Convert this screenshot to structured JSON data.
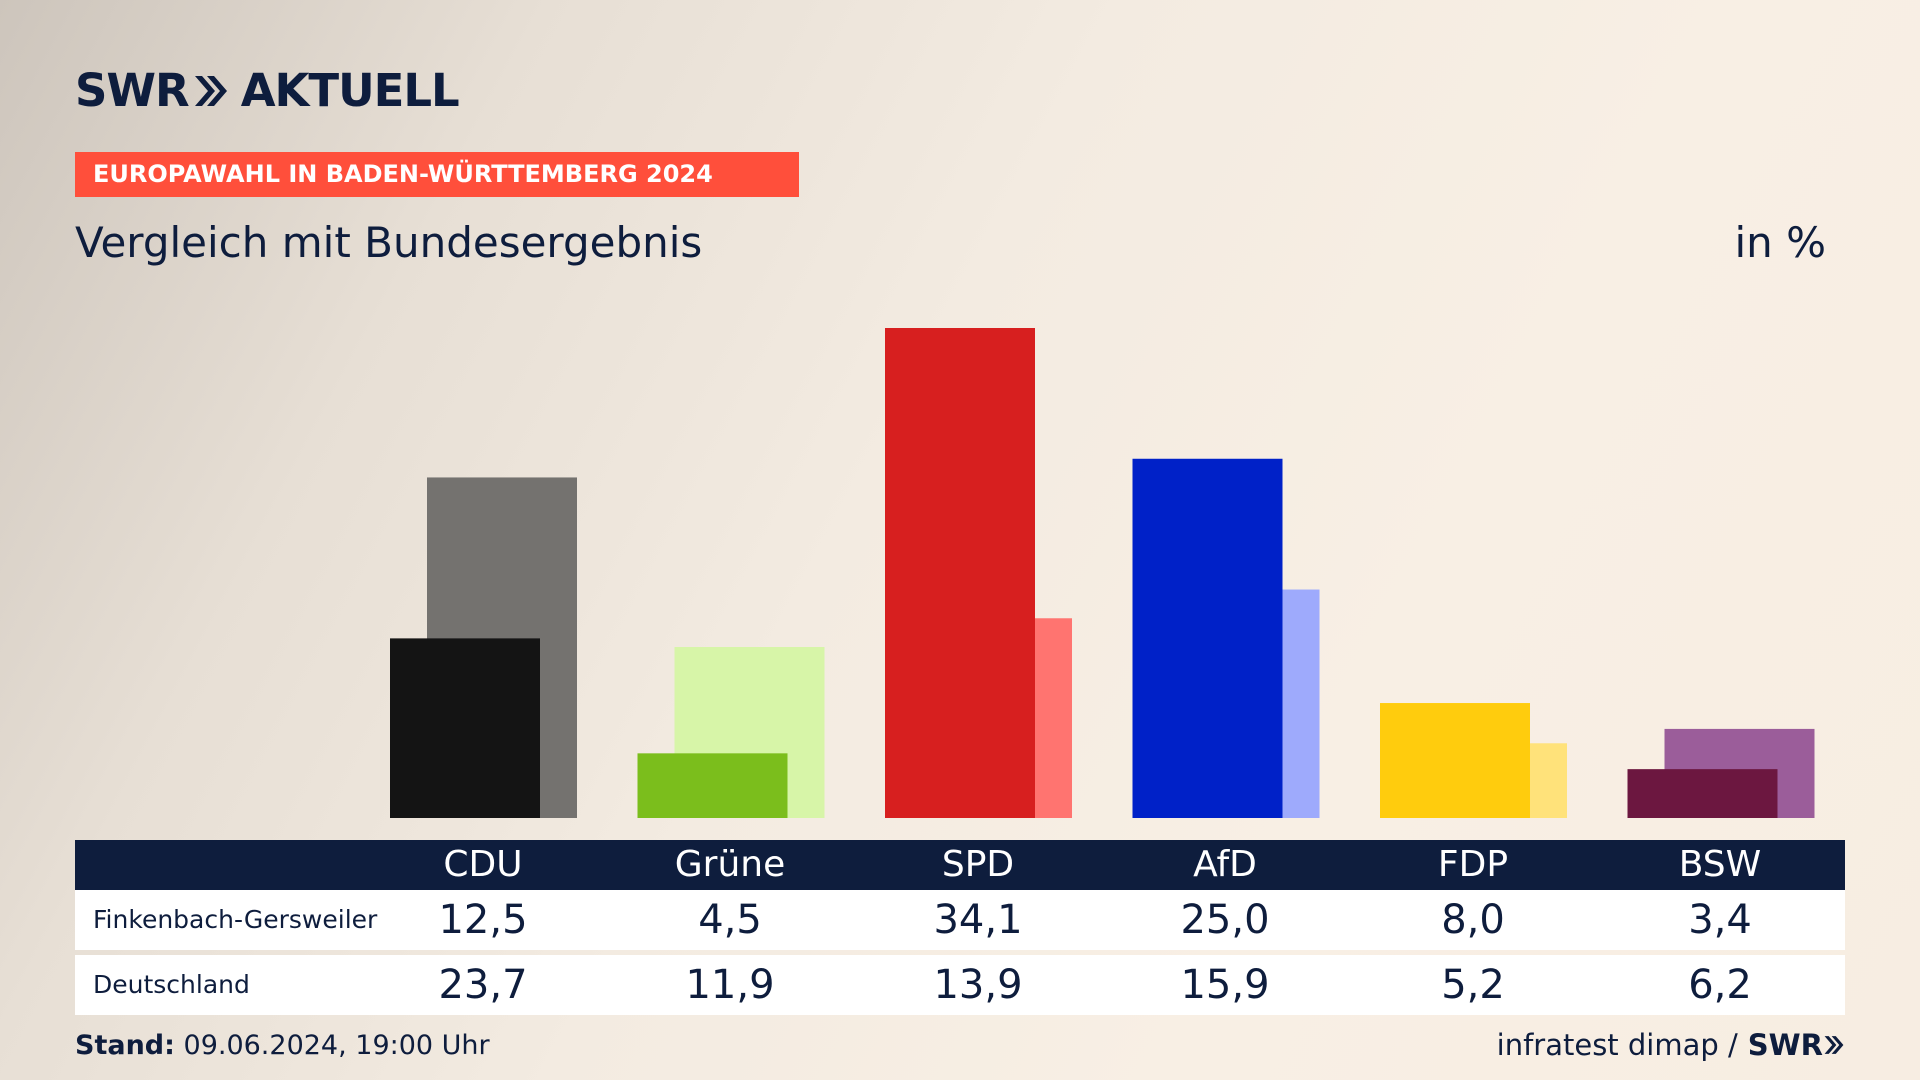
{
  "brand": {
    "logo_left": "SWR",
    "logo_right": "AKTUELL"
  },
  "banner": "EUROPAWAHL IN BADEN-WÜRTTEMBERG 2024",
  "subtitle": "Vergleich mit Bundesergebnis",
  "unit": "in %",
  "footer": {
    "stand_label": "Stand:",
    "stand_value": "09.06.2024, 19:00 Uhr",
    "source": "infratest dimap /",
    "source_brand": "SWR"
  },
  "table": {
    "columns": [
      "CDU",
      "Grüne",
      "SPD",
      "AfD",
      "FDP",
      "BSW"
    ],
    "rows": [
      {
        "label": "Finkenbach-Gersweiler",
        "values": [
          "12,5",
          "4,5",
          "34,1",
          "25,0",
          "8,0",
          "3,4"
        ]
      },
      {
        "label": "Deutschland",
        "values": [
          "23,7",
          "11,9",
          "13,9",
          "15,9",
          "5,2",
          "6,2"
        ]
      }
    ]
  },
  "chart_data": {
    "type": "bar",
    "categories": [
      "CDU",
      "Grüne",
      "SPD",
      "AfD",
      "FDP",
      "BSW"
    ],
    "series": [
      {
        "name": "Finkenbach-Gersweiler",
        "values": [
          12.5,
          4.5,
          34.1,
          25.0,
          8.0,
          3.4
        ],
        "colors": [
          "#141414",
          "#7bbe1c",
          "#d71f1f",
          "#0021c8",
          "#ffcc0d",
          "#6c1740"
        ]
      },
      {
        "name": "Deutschland",
        "values": [
          23.7,
          11.9,
          13.9,
          15.9,
          5.2,
          6.2
        ],
        "colors": [
          "#74726f",
          "#d7f5a8",
          "#ff7470",
          "#9eaafc",
          "#ffe27a",
          "#9b5d9a"
        ]
      }
    ],
    "ylim": [
      0,
      34.1
    ]
  }
}
